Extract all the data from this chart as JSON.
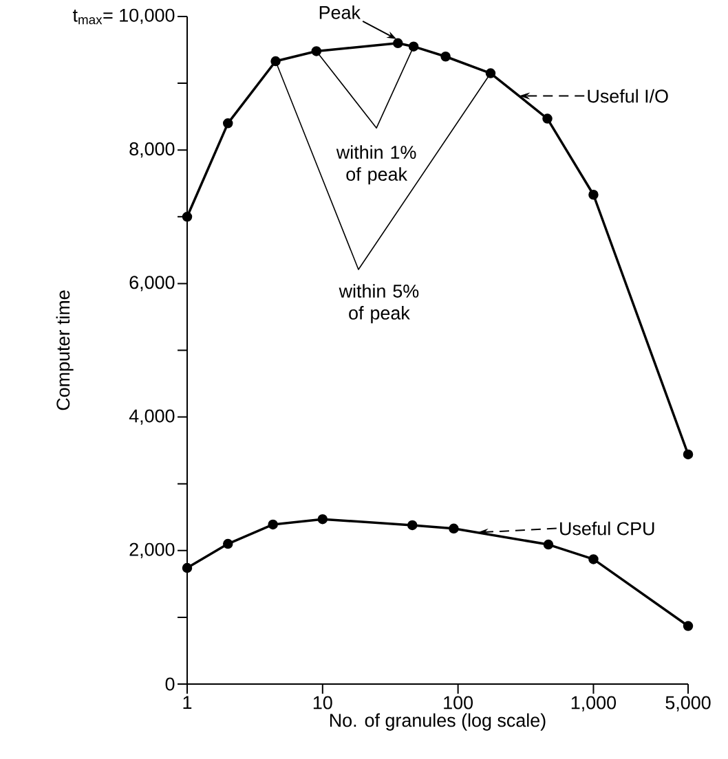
{
  "chart_data": {
    "type": "line",
    "xlabel": "No. of granules (log scale)",
    "ylabel": "Computer time",
    "log": "x",
    "xlim": [
      1,
      5000
    ],
    "xticks": [
      1,
      10,
      100,
      {
        "value": 1000,
        "label": "1,000"
      },
      {
        "value": 5000,
        "label": "5,000"
      }
    ],
    "ylim": [
      0,
      10000
    ],
    "yticks": [
      0,
      {
        "value": 1000,
        "label": null
      },
      {
        "value": 2000,
        "label": "2,000"
      },
      {
        "value": 3000,
        "label": null
      },
      {
        "value": 4000,
        "label": "4,000"
      },
      {
        "value": 5000,
        "label": null
      },
      {
        "value": 6000,
        "label": "6,000"
      },
      {
        "value": 7000,
        "label": null
      },
      {
        "value": 8000,
        "label": "8,000"
      },
      {
        "value": 9000,
        "label": null
      },
      {
        "value": 10000,
        "label": "t$_{max}$= 10,000"
      }
    ],
    "series": [
      {
        "color": "#000000",
        "marker": "circle",
        "x": [
          1,
          2,
          4.5,
          9,
          36,
          47,
          81,
          174,
          457,
          1000,
          5000
        ],
        "values": [
          7000,
          8400,
          9330,
          9480,
          9600,
          9550,
          9400,
          9150,
          8470,
          7330,
          3440
        ]
      },
      {
        "color": "#000000",
        "marker": "circle",
        "x": [
          1,
          2,
          4.3,
          10,
          46,
          93,
          465,
          1000,
          5000
        ],
        "values": [
          1740,
          2100,
          2390,
          2470,
          2380,
          2330,
          2090,
          1870,
          870
        ]
      },
      {
        "color": "#000000",
        "marker": "none",
        "x": [
          9,
          25,
          47
        ],
        "values": [
          9480,
          8330,
          9550
        ]
      },
      {
        "color": "#000000",
        "marker": "none",
        "x": [
          4.5,
          18.4,
          174
        ],
        "values": [
          9330,
          6210,
          9150
        ]
      }
    ],
    "annotations": [
      {
        "text": "Peak",
        "x": 36,
        "y": 9600
      },
      "Useful I/O",
      "Useful CPU",
      {
        "text": "within 1% of peak",
        "x": 25,
        "y": 8330
      },
      {
        "text": "within 5% of peak",
        "x": 18.4,
        "y": 6210
      }
    ]
  }
}
